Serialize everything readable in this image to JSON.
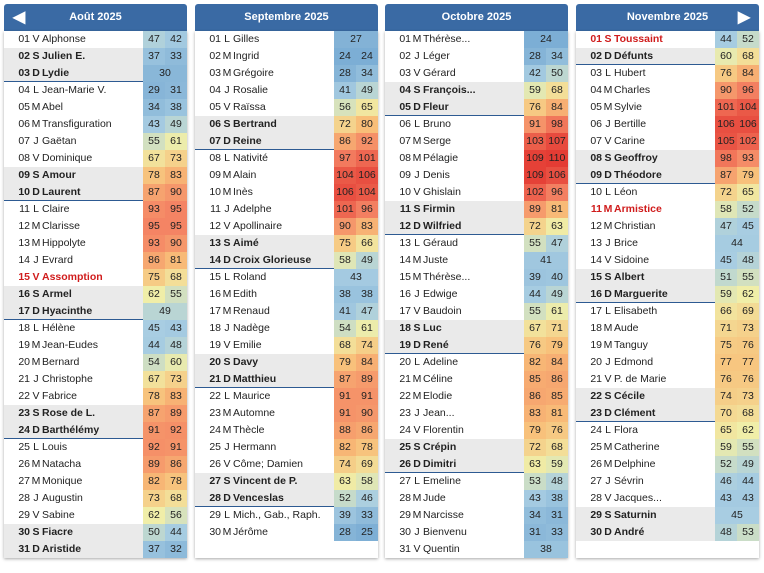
{
  "colors": {
    "header": "#3a6aa4",
    "holiday_text": "#d01c1c",
    "weekend_row": "#eaeaea",
    "week_separator": "#2d5a92"
  },
  "nav": {
    "prev_icon": "triangle-left-icon",
    "next_icon": "triangle-right-icon"
  },
  "months": [
    {
      "title": "Août 2025",
      "rows": [
        {
          "num": "01",
          "dow": "V",
          "name": "Alphonse",
          "v1": "47",
          "v2": "42"
        },
        {
          "num": "02",
          "dow": "S",
          "name": "Julien E.",
          "v1": "37",
          "v2": "33",
          "bold": true
        },
        {
          "num": "03",
          "dow": "D",
          "name": "Lydie",
          "v1": "30",
          "bold": true,
          "week": true
        },
        {
          "num": "04",
          "dow": "L",
          "name": "Jean-Marie V.",
          "v1": "29",
          "v2": "31"
        },
        {
          "num": "05",
          "dow": "M",
          "name": "Abel",
          "v1": "34",
          "v2": "38"
        },
        {
          "num": "06",
          "dow": "M",
          "name": "Transfiguration",
          "v1": "43",
          "v2": "49"
        },
        {
          "num": "07",
          "dow": "J",
          "name": "Gaëtan",
          "v1": "55",
          "v2": "61"
        },
        {
          "num": "08",
          "dow": "V",
          "name": "Dominique",
          "v1": "67",
          "v2": "73"
        },
        {
          "num": "09",
          "dow": "S",
          "name": "Amour",
          "v1": "78",
          "v2": "83",
          "bold": true
        },
        {
          "num": "10",
          "dow": "D",
          "name": "Laurent",
          "v1": "87",
          "v2": "90",
          "bold": true,
          "week": true
        },
        {
          "num": "11",
          "dow": "L",
          "name": "Claire",
          "v1": "93",
          "v2": "95"
        },
        {
          "num": "12",
          "dow": "M",
          "name": "Clarisse",
          "v1": "95",
          "v2": "95"
        },
        {
          "num": "13",
          "dow": "M",
          "name": "Hippolyte",
          "v1": "93",
          "v2": "90"
        },
        {
          "num": "14",
          "dow": "J",
          "name": "Evrard",
          "v1": "86",
          "v2": "81"
        },
        {
          "num": "15",
          "dow": "V",
          "name": "Assomption",
          "v1": "75",
          "v2": "68",
          "holiday": true
        },
        {
          "num": "16",
          "dow": "S",
          "name": "Armel",
          "v1": "62",
          "v2": "55",
          "bold": true
        },
        {
          "num": "17",
          "dow": "D",
          "name": "Hyacinthe",
          "v1": "49",
          "bold": true,
          "week": true
        },
        {
          "num": "18",
          "dow": "L",
          "name": "Hélène",
          "v1": "45",
          "v2": "43"
        },
        {
          "num": "19",
          "dow": "M",
          "name": "Jean-Eudes",
          "v1": "44",
          "v2": "48"
        },
        {
          "num": "20",
          "dow": "M",
          "name": "Bernard",
          "v1": "54",
          "v2": "60"
        },
        {
          "num": "21",
          "dow": "J",
          "name": "Christophe",
          "v1": "67",
          "v2": "73"
        },
        {
          "num": "22",
          "dow": "V",
          "name": "Fabrice",
          "v1": "78",
          "v2": "83"
        },
        {
          "num": "23",
          "dow": "S",
          "name": "Rose de L.",
          "v1": "87",
          "v2": "89",
          "bold": true
        },
        {
          "num": "24",
          "dow": "D",
          "name": "Barthélémy",
          "v1": "91",
          "v2": "92",
          "bold": true,
          "week": true
        },
        {
          "num": "25",
          "dow": "L",
          "name": "Louis",
          "v1": "92",
          "v2": "91"
        },
        {
          "num": "26",
          "dow": "M",
          "name": "Natacha",
          "v1": "89",
          "v2": "86"
        },
        {
          "num": "27",
          "dow": "M",
          "name": "Monique",
          "v1": "82",
          "v2": "78"
        },
        {
          "num": "28",
          "dow": "J",
          "name": "Augustin",
          "v1": "73",
          "v2": "68"
        },
        {
          "num": "29",
          "dow": "V",
          "name": "Sabine",
          "v1": "62",
          "v2": "56"
        },
        {
          "num": "30",
          "dow": "S",
          "name": "Fiacre",
          "v1": "50",
          "v2": "44",
          "bold": true
        },
        {
          "num": "31",
          "dow": "D",
          "name": "Aristide",
          "v1": "37",
          "v2": "32",
          "bold": true
        }
      ]
    },
    {
      "title": "Septembre 2025",
      "rows": [
        {
          "num": "01",
          "dow": "L",
          "name": "Gilles",
          "v1": "27"
        },
        {
          "num": "02",
          "dow": "M",
          "name": "Ingrid",
          "v1": "24",
          "v2": "24"
        },
        {
          "num": "03",
          "dow": "M",
          "name": "Grégoire",
          "v1": "28",
          "v2": "34"
        },
        {
          "num": "04",
          "dow": "J",
          "name": "Rosalie",
          "v1": "41",
          "v2": "49"
        },
        {
          "num": "05",
          "dow": "V",
          "name": "Raïssa",
          "v1": "56",
          "v2": "65"
        },
        {
          "num": "06",
          "dow": "S",
          "name": "Bertrand",
          "v1": "72",
          "v2": "80",
          "bold": true
        },
        {
          "num": "07",
          "dow": "D",
          "name": "Reine",
          "v1": "86",
          "v2": "92",
          "bold": true,
          "week": true
        },
        {
          "num": "08",
          "dow": "L",
          "name": "Nativité",
          "v1": "97",
          "v2": "101"
        },
        {
          "num": "09",
          "dow": "M",
          "name": "Alain",
          "v1": "104",
          "v2": "106"
        },
        {
          "num": "10",
          "dow": "M",
          "name": "Inès",
          "v1": "106",
          "v2": "104"
        },
        {
          "num": "11",
          "dow": "J",
          "name": "Adelphe",
          "v1": "101",
          "v2": "96"
        },
        {
          "num": "12",
          "dow": "V",
          "name": "Apollinaire",
          "v1": "90",
          "v2": "83"
        },
        {
          "num": "13",
          "dow": "S",
          "name": "Aimé",
          "v1": "75",
          "v2": "66",
          "bold": true
        },
        {
          "num": "14",
          "dow": "D",
          "name": "Croix Glorieuse",
          "v1": "58",
          "v2": "49",
          "bold": true,
          "week": true
        },
        {
          "num": "15",
          "dow": "L",
          "name": "Roland",
          "v1": "43"
        },
        {
          "num": "16",
          "dow": "M",
          "name": "Edith",
          "v1": "38",
          "v2": "38"
        },
        {
          "num": "17",
          "dow": "M",
          "name": "Renaud",
          "v1": "41",
          "v2": "47"
        },
        {
          "num": "18",
          "dow": "J",
          "name": "Nadège",
          "v1": "54",
          "v2": "61"
        },
        {
          "num": "19",
          "dow": "V",
          "name": "Emilie",
          "v1": "68",
          "v2": "74"
        },
        {
          "num": "20",
          "dow": "S",
          "name": "Davy",
          "v1": "79",
          "v2": "84",
          "bold": true
        },
        {
          "num": "21",
          "dow": "D",
          "name": "Matthieu",
          "v1": "87",
          "v2": "89",
          "bold": true,
          "week": true
        },
        {
          "num": "22",
          "dow": "L",
          "name": "Maurice",
          "v1": "91",
          "v2": "91"
        },
        {
          "num": "23",
          "dow": "M",
          "name": "Automne",
          "v1": "91",
          "v2": "90"
        },
        {
          "num": "24",
          "dow": "M",
          "name": "Thècle",
          "v1": "88",
          "v2": "86"
        },
        {
          "num": "25",
          "dow": "J",
          "name": "Hermann",
          "v1": "82",
          "v2": "78"
        },
        {
          "num": "26",
          "dow": "V",
          "name": "Côme; Damien",
          "v1": "74",
          "v2": "69"
        },
        {
          "num": "27",
          "dow": "S",
          "name": "Vincent de P.",
          "v1": "63",
          "v2": "58",
          "bold": true
        },
        {
          "num": "28",
          "dow": "D",
          "name": "Venceslas",
          "v1": "52",
          "v2": "46",
          "bold": true,
          "week": true
        },
        {
          "num": "29",
          "dow": "L",
          "name": "Mich., Gab., Raph.",
          "v1": "39",
          "v2": "33"
        },
        {
          "num": "30",
          "dow": "M",
          "name": "Jérôme",
          "v1": "28",
          "v2": "25"
        }
      ]
    },
    {
      "title": "Octobre 2025",
      "rows": [
        {
          "num": "01",
          "dow": "M",
          "name": "Thérèse...",
          "v1": "24"
        },
        {
          "num": "02",
          "dow": "J",
          "name": "Léger",
          "v1": "28",
          "v2": "34"
        },
        {
          "num": "03",
          "dow": "V",
          "name": "Gérard",
          "v1": "42",
          "v2": "50"
        },
        {
          "num": "04",
          "dow": "S",
          "name": "François...",
          "v1": "59",
          "v2": "68",
          "bold": true
        },
        {
          "num": "05",
          "dow": "D",
          "name": "Fleur",
          "v1": "76",
          "v2": "84",
          "bold": true,
          "week": true
        },
        {
          "num": "06",
          "dow": "L",
          "name": "Bruno",
          "v1": "91",
          "v2": "98"
        },
        {
          "num": "07",
          "dow": "M",
          "name": "Serge",
          "v1": "103",
          "v2": "107"
        },
        {
          "num": "08",
          "dow": "M",
          "name": "Pélagie",
          "v1": "109",
          "v2": "110"
        },
        {
          "num": "09",
          "dow": "J",
          "name": "Denis",
          "v1": "109",
          "v2": "106"
        },
        {
          "num": "10",
          "dow": "V",
          "name": "Ghislain",
          "v1": "102",
          "v2": "96"
        },
        {
          "num": "11",
          "dow": "S",
          "name": "Firmin",
          "v1": "89",
          "v2": "81",
          "bold": true
        },
        {
          "num": "12",
          "dow": "D",
          "name": "Wilfried",
          "v1": "72",
          "v2": "63",
          "bold": true,
          "week": true
        },
        {
          "num": "13",
          "dow": "L",
          "name": "Géraud",
          "v1": "55",
          "v2": "47"
        },
        {
          "num": "14",
          "dow": "M",
          "name": "Juste",
          "v1": "41"
        },
        {
          "num": "15",
          "dow": "M",
          "name": "Thérèse...",
          "v1": "39",
          "v2": "40"
        },
        {
          "num": "16",
          "dow": "J",
          "name": "Edwige",
          "v1": "44",
          "v2": "49"
        },
        {
          "num": "17",
          "dow": "V",
          "name": "Baudoin",
          "v1": "55",
          "v2": "61"
        },
        {
          "num": "18",
          "dow": "S",
          "name": "Luc",
          "v1": "67",
          "v2": "71",
          "bold": true
        },
        {
          "num": "19",
          "dow": "D",
          "name": "René",
          "v1": "76",
          "v2": "79",
          "bold": true,
          "week": true
        },
        {
          "num": "20",
          "dow": "L",
          "name": "Adeline",
          "v1": "82",
          "v2": "84"
        },
        {
          "num": "21",
          "dow": "M",
          "name": "Céline",
          "v1": "85",
          "v2": "86"
        },
        {
          "num": "22",
          "dow": "M",
          "name": "Elodie",
          "v1": "86",
          "v2": "85"
        },
        {
          "num": "23",
          "dow": "J",
          "name": "Jean...",
          "v1": "83",
          "v2": "81"
        },
        {
          "num": "24",
          "dow": "V",
          "name": "Florentin",
          "v1": "79",
          "v2": "76"
        },
        {
          "num": "25",
          "dow": "S",
          "name": "Crépin",
          "v1": "72",
          "v2": "68",
          "bold": true
        },
        {
          "num": "26",
          "dow": "D",
          "name": "Dimitri",
          "v1": "63",
          "v2": "59",
          "bold": true,
          "week": true
        },
        {
          "num": "27",
          "dow": "L",
          "name": "Emeline",
          "v1": "53",
          "v2": "48"
        },
        {
          "num": "28",
          "dow": "M",
          "name": "Jude",
          "v1": "43",
          "v2": "38"
        },
        {
          "num": "29",
          "dow": "M",
          "name": "Narcisse",
          "v1": "34",
          "v2": "31"
        },
        {
          "num": "30",
          "dow": "J",
          "name": "Bienvenu",
          "v1": "31",
          "v2": "33"
        },
        {
          "num": "31",
          "dow": "V",
          "name": "Quentin",
          "v1": "38"
        }
      ]
    },
    {
      "title": "Novembre 2025",
      "rows": [
        {
          "num": "01",
          "dow": "S",
          "name": "Toussaint",
          "v1": "44",
          "v2": "52",
          "holiday": true
        },
        {
          "num": "02",
          "dow": "D",
          "name": "Défunts",
          "v1": "60",
          "v2": "68",
          "bold": true,
          "week": true
        },
        {
          "num": "03",
          "dow": "L",
          "name": "Hubert",
          "v1": "76",
          "v2": "84"
        },
        {
          "num": "04",
          "dow": "M",
          "name": "Charles",
          "v1": "90",
          "v2": "96"
        },
        {
          "num": "05",
          "dow": "M",
          "name": "Sylvie",
          "v1": "101",
          "v2": "104"
        },
        {
          "num": "06",
          "dow": "J",
          "name": "Bertille",
          "v1": "106",
          "v2": "106"
        },
        {
          "num": "07",
          "dow": "V",
          "name": "Carine",
          "v1": "105",
          "v2": "102"
        },
        {
          "num": "08",
          "dow": "S",
          "name": "Geoffroy",
          "v1": "98",
          "v2": "93",
          "bold": true
        },
        {
          "num": "09",
          "dow": "D",
          "name": "Théodore",
          "v1": "87",
          "v2": "79",
          "bold": true,
          "week": true
        },
        {
          "num": "10",
          "dow": "L",
          "name": "Léon",
          "v1": "72",
          "v2": "65"
        },
        {
          "num": "11",
          "dow": "M",
          "name": "Armistice",
          "v1": "58",
          "v2": "52",
          "holiday": true
        },
        {
          "num": "12",
          "dow": "M",
          "name": "Christian",
          "v1": "47",
          "v2": "45"
        },
        {
          "num": "13",
          "dow": "J",
          "name": "Brice",
          "v1": "44"
        },
        {
          "num": "14",
          "dow": "V",
          "name": "Sidoine",
          "v1": "45",
          "v2": "48"
        },
        {
          "num": "15",
          "dow": "S",
          "name": "Albert",
          "v1": "51",
          "v2": "55",
          "bold": true
        },
        {
          "num": "16",
          "dow": "D",
          "name": "Marguerite",
          "v1": "59",
          "v2": "62",
          "bold": true,
          "week": true
        },
        {
          "num": "17",
          "dow": "L",
          "name": "Elisabeth",
          "v1": "66",
          "v2": "69"
        },
        {
          "num": "18",
          "dow": "M",
          "name": "Aude",
          "v1": "71",
          "v2": "73"
        },
        {
          "num": "19",
          "dow": "M",
          "name": "Tanguy",
          "v1": "75",
          "v2": "76"
        },
        {
          "num": "20",
          "dow": "J",
          "name": "Edmond",
          "v1": "77",
          "v2": "77"
        },
        {
          "num": "21",
          "dow": "V",
          "name": "P. de Marie",
          "v1": "76",
          "v2": "76"
        },
        {
          "num": "22",
          "dow": "S",
          "name": "Cécile",
          "v1": "74",
          "v2": "73",
          "bold": true
        },
        {
          "num": "23",
          "dow": "D",
          "name": "Clément",
          "v1": "70",
          "v2": "68",
          "bold": true,
          "week": true
        },
        {
          "num": "24",
          "dow": "L",
          "name": "Flora",
          "v1": "65",
          "v2": "62"
        },
        {
          "num": "25",
          "dow": "M",
          "name": "Catherine",
          "v1": "59",
          "v2": "55"
        },
        {
          "num": "26",
          "dow": "M",
          "name": "Delphine",
          "v1": "52",
          "v2": "49"
        },
        {
          "num": "27",
          "dow": "J",
          "name": "Sévrin",
          "v1": "46",
          "v2": "44"
        },
        {
          "num": "28",
          "dow": "V",
          "name": "Jacques...",
          "v1": "43",
          "v2": "43"
        },
        {
          "num": "29",
          "dow": "S",
          "name": "Saturnin",
          "v1": "45",
          "bold": true
        },
        {
          "num": "30",
          "dow": "D",
          "name": "André",
          "v1": "48",
          "v2": "53",
          "bold": true
        }
      ]
    }
  ]
}
